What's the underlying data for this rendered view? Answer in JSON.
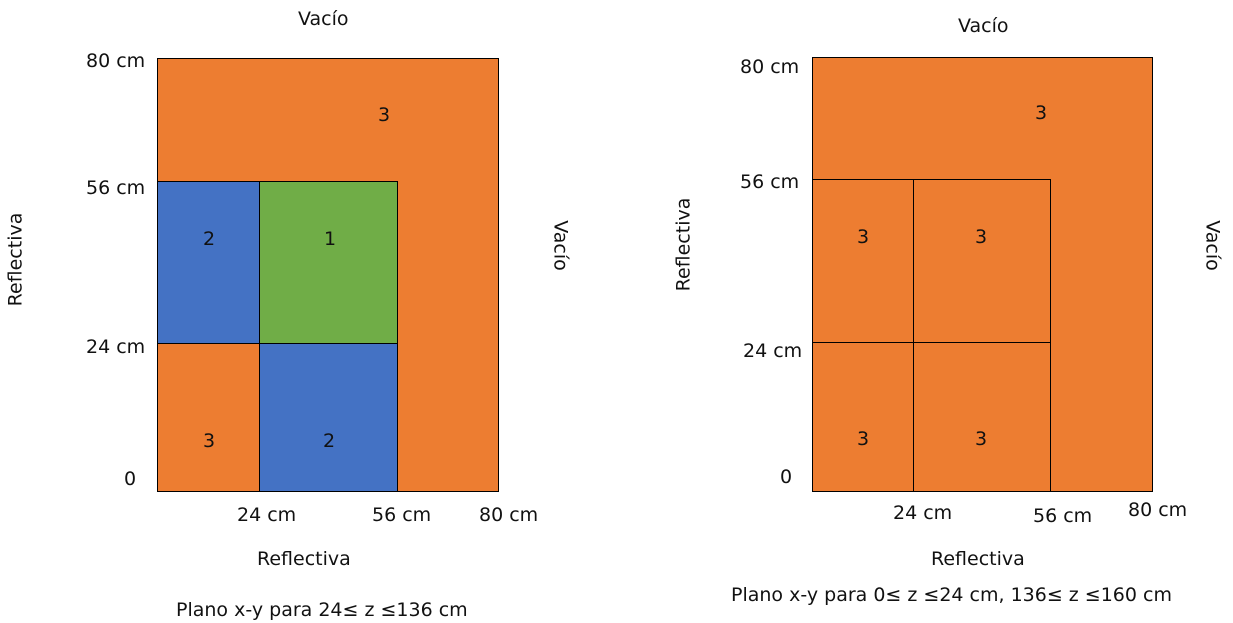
{
  "colors": {
    "region_1": "#70ad47",
    "region_2": "#4472c4",
    "region_3": "#ed7d31"
  },
  "left": {
    "top_label": "Vacío",
    "left_label": "Reflectiva",
    "right_label": "Vacío",
    "bottom_label": "Reflectiva",
    "caption": "Plano x-y para 24≤ z ≤136 cm",
    "y_ticks": [
      "80 cm",
      "56 cm",
      "24 cm",
      "0"
    ],
    "x_ticks": [
      "24 cm",
      "56 cm",
      "80 cm"
    ],
    "regions": [
      "3",
      "2",
      "1",
      "3",
      "2"
    ]
  },
  "right": {
    "top_label": "Vacío",
    "left_label": "Reflectiva",
    "right_label": "Vacío",
    "bottom_label": "Reflectiva",
    "caption": "Plano x-y para 0≤ z ≤24 cm, 136≤ z ≤160 cm",
    "y_ticks": [
      "80 cm",
      "56 cm",
      "24 cm",
      "0"
    ],
    "x_ticks": [
      "24 cm",
      "56 cm",
      "80 cm"
    ],
    "regions": [
      "3",
      "3",
      "3",
      "3",
      "3"
    ]
  }
}
